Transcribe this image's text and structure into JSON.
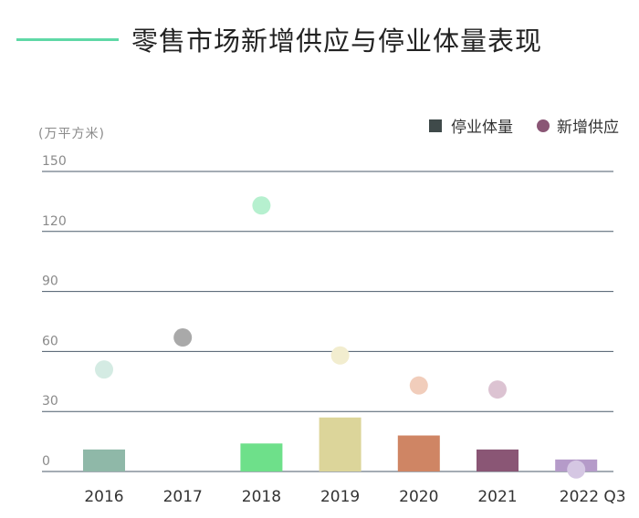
{
  "chart_data": {
    "type": "bar",
    "title": "零售市场新增供应与停业体量表现",
    "unit_label": "(万平方米)",
    "categories": [
      "2016",
      "2017",
      "2018",
      "2019",
      "2020",
      "2021",
      "2022 Q3"
    ],
    "series": [
      {
        "name": "停业体量",
        "type": "bar",
        "values": [
          11,
          0,
          14,
          27,
          18,
          11,
          6
        ],
        "colors": [
          "#8fb8a8",
          "#b9b9b9",
          "#6ee08a",
          "#dcd59a",
          "#cf8564",
          "#8a5675",
          "#b59bc9"
        ],
        "legend_color": "#3f4a4a"
      },
      {
        "name": "新增供应",
        "type": "scatter",
        "values": [
          51,
          67,
          133,
          58,
          43,
          41,
          1
        ],
        "colors": [
          "#d4ebe3",
          "#a9a9a9",
          "#b6f0cf",
          "#f2edcf",
          "#f1cdbb",
          "#dcc3d2",
          "#d5c7e3"
        ],
        "legend_color": "#8a5675"
      }
    ],
    "yticks": [
      0,
      30,
      60,
      90,
      120,
      150
    ],
    "ylim": [
      0,
      150
    ],
    "grid": true,
    "legend_position": "top-right"
  }
}
